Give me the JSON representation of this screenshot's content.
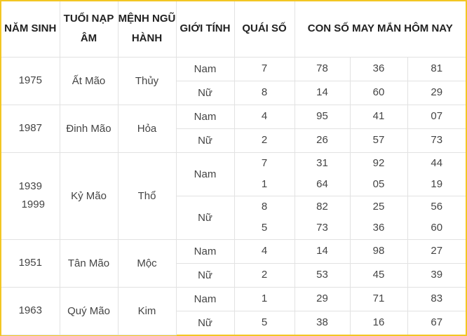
{
  "headers": {
    "nam_sinh": "NĂM SINH",
    "tuoi_nap_am_1": "TUỔI NẠP",
    "tuoi_nap_am_2": "ÂM",
    "menh_ngu_hanh_1": "MỆNH NGŨ",
    "menh_ngu_hanh_2": "HÀNH",
    "gioi_tinh": "GIỚI TÍNH",
    "quai_so": "QUÁI SỐ",
    "con_so": "CON SỐ MAY MẮN HÔM NAY"
  },
  "rows": [
    {
      "years": [
        "1975"
      ],
      "tuoi": "Ất Mão",
      "menh": "Thủy",
      "genders": [
        {
          "label": "Nam",
          "quai": [
            "7"
          ],
          "nums": [
            [
              "78"
            ],
            [
              "36"
            ],
            [
              "81"
            ]
          ]
        },
        {
          "label": "Nữ",
          "quai": [
            "8"
          ],
          "nums": [
            [
              "14"
            ],
            [
              "60"
            ],
            [
              "29"
            ]
          ]
        }
      ]
    },
    {
      "years": [
        "1987"
      ],
      "tuoi": "Đinh Mão",
      "menh": "Hỏa",
      "genders": [
        {
          "label": "Nam",
          "quai": [
            "4"
          ],
          "nums": [
            [
              "95"
            ],
            [
              "41"
            ],
            [
              "07"
            ]
          ]
        },
        {
          "label": "Nữ",
          "quai": [
            "2"
          ],
          "nums": [
            [
              "26"
            ],
            [
              "57"
            ],
            [
              "73"
            ]
          ]
        }
      ]
    },
    {
      "years": [
        "1939",
        "1999"
      ],
      "tuoi": "Kỷ Mão",
      "menh": "Thổ",
      "genders": [
        {
          "label": "Nam",
          "quai": [
            "7",
            "1"
          ],
          "nums": [
            [
              "31",
              "64"
            ],
            [
              "92",
              "05"
            ],
            [
              "44",
              "19"
            ]
          ]
        },
        {
          "label": "Nữ",
          "quai": [
            "8",
            "5"
          ],
          "nums": [
            [
              "82",
              "73"
            ],
            [
              "25",
              "36"
            ],
            [
              "56",
              "60"
            ]
          ]
        }
      ]
    },
    {
      "years": [
        "1951"
      ],
      "tuoi": "Tân Mão",
      "menh": "Mộc",
      "genders": [
        {
          "label": "Nam",
          "quai": [
            "4"
          ],
          "nums": [
            [
              "14"
            ],
            [
              "98"
            ],
            [
              "27"
            ]
          ]
        },
        {
          "label": "Nữ",
          "quai": [
            "2"
          ],
          "nums": [
            [
              "53"
            ],
            [
              "45"
            ],
            [
              "39"
            ]
          ]
        }
      ]
    },
    {
      "years": [
        "1963"
      ],
      "tuoi": "Quý Mão",
      "menh": "Kim",
      "genders": [
        {
          "label": "Nam",
          "quai": [
            "1"
          ],
          "nums": [
            [
              "29"
            ],
            [
              "71"
            ],
            [
              "83"
            ]
          ]
        },
        {
          "label": "Nữ",
          "quai": [
            "5"
          ],
          "nums": [
            [
              "38"
            ],
            [
              "16"
            ],
            [
              "67"
            ]
          ]
        }
      ]
    }
  ],
  "colors": {
    "frame_border": "#f3c623",
    "grid_line": "#e2e2e2",
    "text": "#444444",
    "header_text": "#222222"
  }
}
